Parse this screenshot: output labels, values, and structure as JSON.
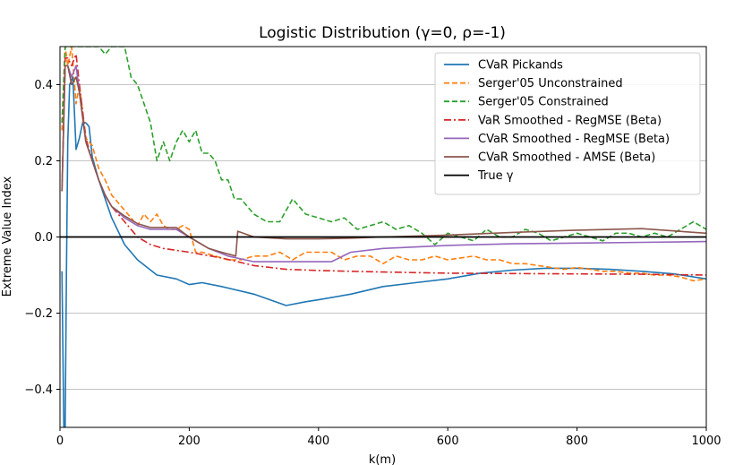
{
  "chart_data": {
    "type": "line",
    "title": "Logistic Distribution (γ=0, ρ=-1)",
    "xlabel": "k(m)",
    "ylabel": "Extreme Value Index",
    "xlim": [
      0,
      1000
    ],
    "ylim": [
      -0.5,
      0.5
    ],
    "xticks": [
      0,
      200,
      400,
      600,
      800,
      1000
    ],
    "yticks": [
      -0.4,
      -0.2,
      0.0,
      0.2,
      0.4
    ],
    "xtick_labels": [
      "0",
      "200",
      "400",
      "600",
      "800",
      "1000"
    ],
    "ytick_labels": [
      "−0.4",
      "−0.2",
      "0.0",
      "0.2",
      "0.4"
    ],
    "grid": "horizontal",
    "legend_position": "top-right",
    "series": [
      {
        "name": "CVaR Pickands",
        "color": "#1f77b4",
        "style": "solid",
        "x": [
          3,
          6,
          8,
          10,
          12,
          15,
          20,
          25,
          30,
          35,
          40,
          45,
          50,
          60,
          70,
          80,
          100,
          120,
          150,
          180,
          200,
          220,
          250,
          300,
          350,
          380,
          400,
          450,
          500,
          550,
          600,
          650,
          700,
          750,
          800,
          850,
          900,
          950,
          1000
        ],
        "y": [
          -0.09,
          -0.5,
          -0.5,
          -0.1,
          0.25,
          0.4,
          0.42,
          0.23,
          0.26,
          0.3,
          0.3,
          0.29,
          0.21,
          0.15,
          0.1,
          0.05,
          -0.02,
          -0.06,
          -0.1,
          -0.11,
          -0.125,
          -0.12,
          -0.13,
          -0.15,
          -0.18,
          -0.17,
          -0.165,
          -0.15,
          -0.13,
          -0.12,
          -0.11,
          -0.095,
          -0.087,
          -0.082,
          -0.082,
          -0.085,
          -0.09,
          -0.097,
          -0.11
        ]
      },
      {
        "name": "Serger'05 Unconstrained",
        "color": "#ff7f0e",
        "style": "dashed",
        "x": [
          3,
          8,
          12,
          18,
          25,
          30,
          40,
          50,
          60,
          70,
          80,
          90,
          100,
          110,
          120,
          130,
          140,
          150,
          160,
          170,
          180,
          190,
          200,
          210,
          220,
          240,
          260,
          280,
          300,
          320,
          340,
          360,
          380,
          400,
          420,
          440,
          460,
          480,
          500,
          520,
          540,
          560,
          580,
          600,
          620,
          640,
          660,
          680,
          700,
          720,
          740,
          760,
          780,
          800,
          820,
          840,
          860,
          880,
          900,
          920,
          940,
          960,
          980,
          1000
        ],
        "y": [
          0.28,
          0.5,
          0.45,
          0.5,
          0.35,
          0.4,
          0.26,
          0.24,
          0.18,
          0.15,
          0.11,
          0.09,
          0.07,
          0.05,
          0.03,
          0.06,
          0.04,
          0.06,
          0.03,
          0.02,
          0.02,
          0.03,
          0.02,
          -0.04,
          -0.04,
          -0.05,
          -0.06,
          -0.06,
          -0.05,
          -0.05,
          -0.04,
          -0.06,
          -0.04,
          -0.04,
          -0.04,
          -0.06,
          -0.05,
          -0.05,
          -0.07,
          -0.05,
          -0.06,
          -0.06,
          -0.05,
          -0.06,
          -0.055,
          -0.05,
          -0.06,
          -0.06,
          -0.07,
          -0.07,
          -0.075,
          -0.08,
          -0.085,
          -0.08,
          -0.085,
          -0.09,
          -0.09,
          -0.095,
          -0.095,
          -0.1,
          -0.1,
          -0.105,
          -0.115,
          -0.11
        ]
      },
      {
        "name": "Serger'05 Constrained",
        "color": "#2ca02c",
        "style": "dashed",
        "x": [
          3,
          8,
          12,
          18,
          25,
          30,
          40,
          50,
          60,
          70,
          80,
          90,
          100,
          110,
          120,
          130,
          140,
          150,
          160,
          170,
          180,
          190,
          200,
          210,
          220,
          230,
          240,
          250,
          260,
          270,
          280,
          290,
          300,
          320,
          340,
          360,
          380,
          400,
          420,
          440,
          460,
          480,
          500,
          520,
          540,
          560,
          580,
          600,
          620,
          640,
          660,
          680,
          700,
          720,
          740,
          760,
          780,
          800,
          820,
          840,
          860,
          880,
          900,
          920,
          940,
          960,
          980,
          1000
        ],
        "y": [
          0.3,
          0.5,
          0.5,
          0.5,
          0.5,
          0.5,
          0.5,
          0.5,
          0.5,
          0.48,
          0.5,
          0.5,
          0.5,
          0.42,
          0.4,
          0.35,
          0.3,
          0.2,
          0.25,
          0.2,
          0.25,
          0.28,
          0.25,
          0.28,
          0.22,
          0.22,
          0.2,
          0.15,
          0.15,
          0.1,
          0.1,
          0.08,
          0.06,
          0.04,
          0.04,
          0.1,
          0.06,
          0.05,
          0.04,
          0.05,
          0.02,
          0.03,
          0.04,
          0.02,
          0.03,
          0.01,
          -0.02,
          0.01,
          0.0,
          -0.01,
          0.02,
          0.0,
          0.0,
          0.02,
          0.01,
          -0.01,
          0.0,
          0.01,
          0.0,
          -0.01,
          0.01,
          0.01,
          0.0,
          0.01,
          0.0,
          0.02,
          0.04,
          0.02
        ]
      },
      {
        "name": "VaR Smoothed - RegMSE (Beta)",
        "color": "#d62728",
        "style": "dashdot",
        "x": [
          3,
          8,
          12,
          18,
          25,
          30,
          40,
          50,
          60,
          70,
          80,
          100,
          120,
          140,
          160,
          200,
          250,
          300,
          350,
          400,
          450,
          500,
          600,
          700,
          800,
          900,
          1000
        ],
        "y": [
          0.12,
          0.47,
          0.47,
          0.45,
          0.48,
          0.4,
          0.26,
          0.2,
          0.15,
          0.11,
          0.08,
          0.04,
          0.0,
          -0.02,
          -0.03,
          -0.04,
          -0.055,
          -0.075,
          -0.085,
          -0.088,
          -0.09,
          -0.092,
          -0.095,
          -0.096,
          -0.097,
          -0.098,
          -0.1
        ]
      },
      {
        "name": "CVaR Smoothed - RegMSE (Beta)",
        "color": "#9467bd",
        "style": "solid",
        "x": [
          3,
          8,
          12,
          18,
          25,
          30,
          40,
          50,
          60,
          70,
          80,
          100,
          120,
          140,
          160,
          180,
          200,
          230,
          260,
          300,
          350,
          400,
          420,
          450,
          500,
          600,
          700,
          800,
          900,
          1000
        ],
        "y": [
          0.12,
          0.45,
          0.45,
          0.42,
          0.45,
          0.38,
          0.25,
          0.2,
          0.15,
          0.11,
          0.08,
          0.05,
          0.03,
          0.02,
          0.02,
          0.02,
          0.0,
          -0.03,
          -0.05,
          -0.065,
          -0.065,
          -0.065,
          -0.065,
          -0.04,
          -0.03,
          -0.022,
          -0.018,
          -0.016,
          -0.014,
          -0.012
        ]
      },
      {
        "name": "CVaR Smoothed - AMSE (Beta)",
        "color": "#8c564b",
        "style": "solid",
        "x": [
          3,
          8,
          12,
          18,
          25,
          30,
          40,
          50,
          60,
          70,
          80,
          100,
          120,
          140,
          160,
          180,
          200,
          230,
          250,
          272,
          275,
          300,
          350,
          400,
          450,
          500,
          600,
          700,
          800,
          900,
          1000
        ],
        "y": [
          0.12,
          0.45,
          0.45,
          0.4,
          0.42,
          0.38,
          0.25,
          0.2,
          0.15,
          0.11,
          0.08,
          0.055,
          0.035,
          0.025,
          0.025,
          0.025,
          0.0,
          -0.03,
          -0.04,
          -0.05,
          0.015,
          0.0,
          -0.005,
          -0.005,
          -0.003,
          0.0,
          0.005,
          0.012,
          0.018,
          0.022,
          0.01
        ]
      },
      {
        "name": "True γ",
        "color": "#000000",
        "style": "solid",
        "x": [
          0,
          1000
        ],
        "y": [
          0.0,
          0.0
        ]
      }
    ]
  }
}
